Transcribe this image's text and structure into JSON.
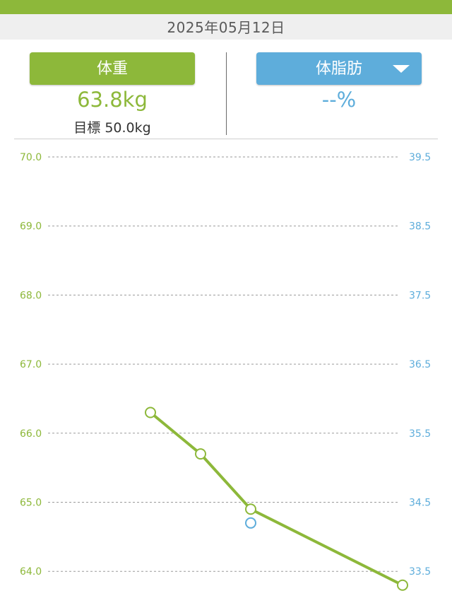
{
  "date": "2025年05月12日",
  "weight_button": {
    "label": "体重"
  },
  "fat_button": {
    "label": "体脂肪",
    "icon": "dropdown-triangle-icon"
  },
  "weight_value": "63.8kg",
  "goal_label": "目標",
  "goal_value": "50.0kg",
  "fat_value": "--%",
  "colors": {
    "weight": "#8db83a",
    "fat": "#5eaddb",
    "date_bg": "#efefef"
  },
  "chart_data": {
    "type": "line",
    "left_ticks": [
      "70.0",
      "69.0",
      "68.0",
      "67.0",
      "66.0",
      "65.0",
      "64.0"
    ],
    "right_ticks": [
      "39.5",
      "38.5",
      "37.5",
      "36.5",
      "35.5",
      "34.5",
      "33.5"
    ],
    "left_ylim": [
      63.8,
      70.0
    ],
    "right_ylim": [
      33.3,
      39.5
    ],
    "grid": true,
    "series": [
      {
        "axis": "left",
        "values": [
          66.3,
          65.7,
          64.9,
          63.8
        ]
      },
      {
        "axis": "right",
        "values": [
          null,
          null,
          34.2,
          null
        ]
      }
    ]
  }
}
